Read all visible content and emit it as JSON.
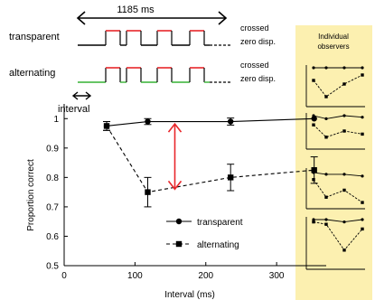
{
  "top_diagram": {
    "duration_label": "1185 ms",
    "rows": [
      {
        "label": "transparent",
        "side_line1": "crossed",
        "side_line2": "zero disp."
      },
      {
        "label": "alternating",
        "side_line1": "crossed",
        "side_line2": "zero disp."
      }
    ],
    "interval_label": "interval",
    "colors": {
      "crossed": "#e8262a",
      "zero": "#35b233",
      "baseline": "#000000"
    }
  },
  "panel": {
    "title_line1": "Individual",
    "title_line2": "observers",
    "background": "#fcf0b0",
    "subplots": [
      {
        "transparent": [
          1,
          1,
          1,
          1
        ],
        "alternating": [
          0.65,
          0.2,
          0.55,
          0.8
        ]
      },
      {
        "transparent": [
          1,
          0.9,
          1,
          0.95
        ],
        "alternating": [
          0.7,
          0.3,
          0.5,
          0.4
        ]
      },
      {
        "transparent": [
          0.95,
          0.9,
          0.9,
          0.85
        ],
        "alternating": [
          0.75,
          0.25,
          0.45,
          0.1
        ]
      },
      {
        "transparent": [
          1,
          1,
          0.95,
          1
        ],
        "alternating": [
          0.95,
          0.9,
          0.35,
          0.8
        ]
      }
    ]
  },
  "chart_data": {
    "type": "line",
    "title": "",
    "xlabel": "Interval (ms)",
    "ylabel": "Proportion correct",
    "xlim": [
      0,
      370
    ],
    "ylim": [
      0.5,
      1.05
    ],
    "xticks": [
      0,
      100,
      200,
      300
    ],
    "yticks": [
      0.5,
      0.6,
      0.7,
      0.8,
      0.9,
      1
    ],
    "ytick_labels": [
      "0.5",
      "0.6",
      "0.7",
      "0.8",
      "0.9",
      "1"
    ],
    "series": [
      {
        "name": "transparent",
        "marker": "circle",
        "line": "solid",
        "x": [
          60,
          118,
          235,
          353
        ],
        "y": [
          0.975,
          0.99,
          0.99,
          1.0
        ],
        "err": [
          0.015,
          0.01,
          0.012,
          0.0
        ]
      },
      {
        "name": "alternating",
        "marker": "square",
        "line": "dashed",
        "x": [
          60,
          118,
          235,
          353
        ],
        "y": [
          0.975,
          0.75,
          0.8,
          0.825
        ],
        "err": [
          0.015,
          0.05,
          0.045,
          0.045
        ]
      }
    ],
    "arrow": {
      "x": 118,
      "y_from": 0.985,
      "y_to": 0.757,
      "color": "#e8262a"
    },
    "legend_position": "lower-right"
  }
}
